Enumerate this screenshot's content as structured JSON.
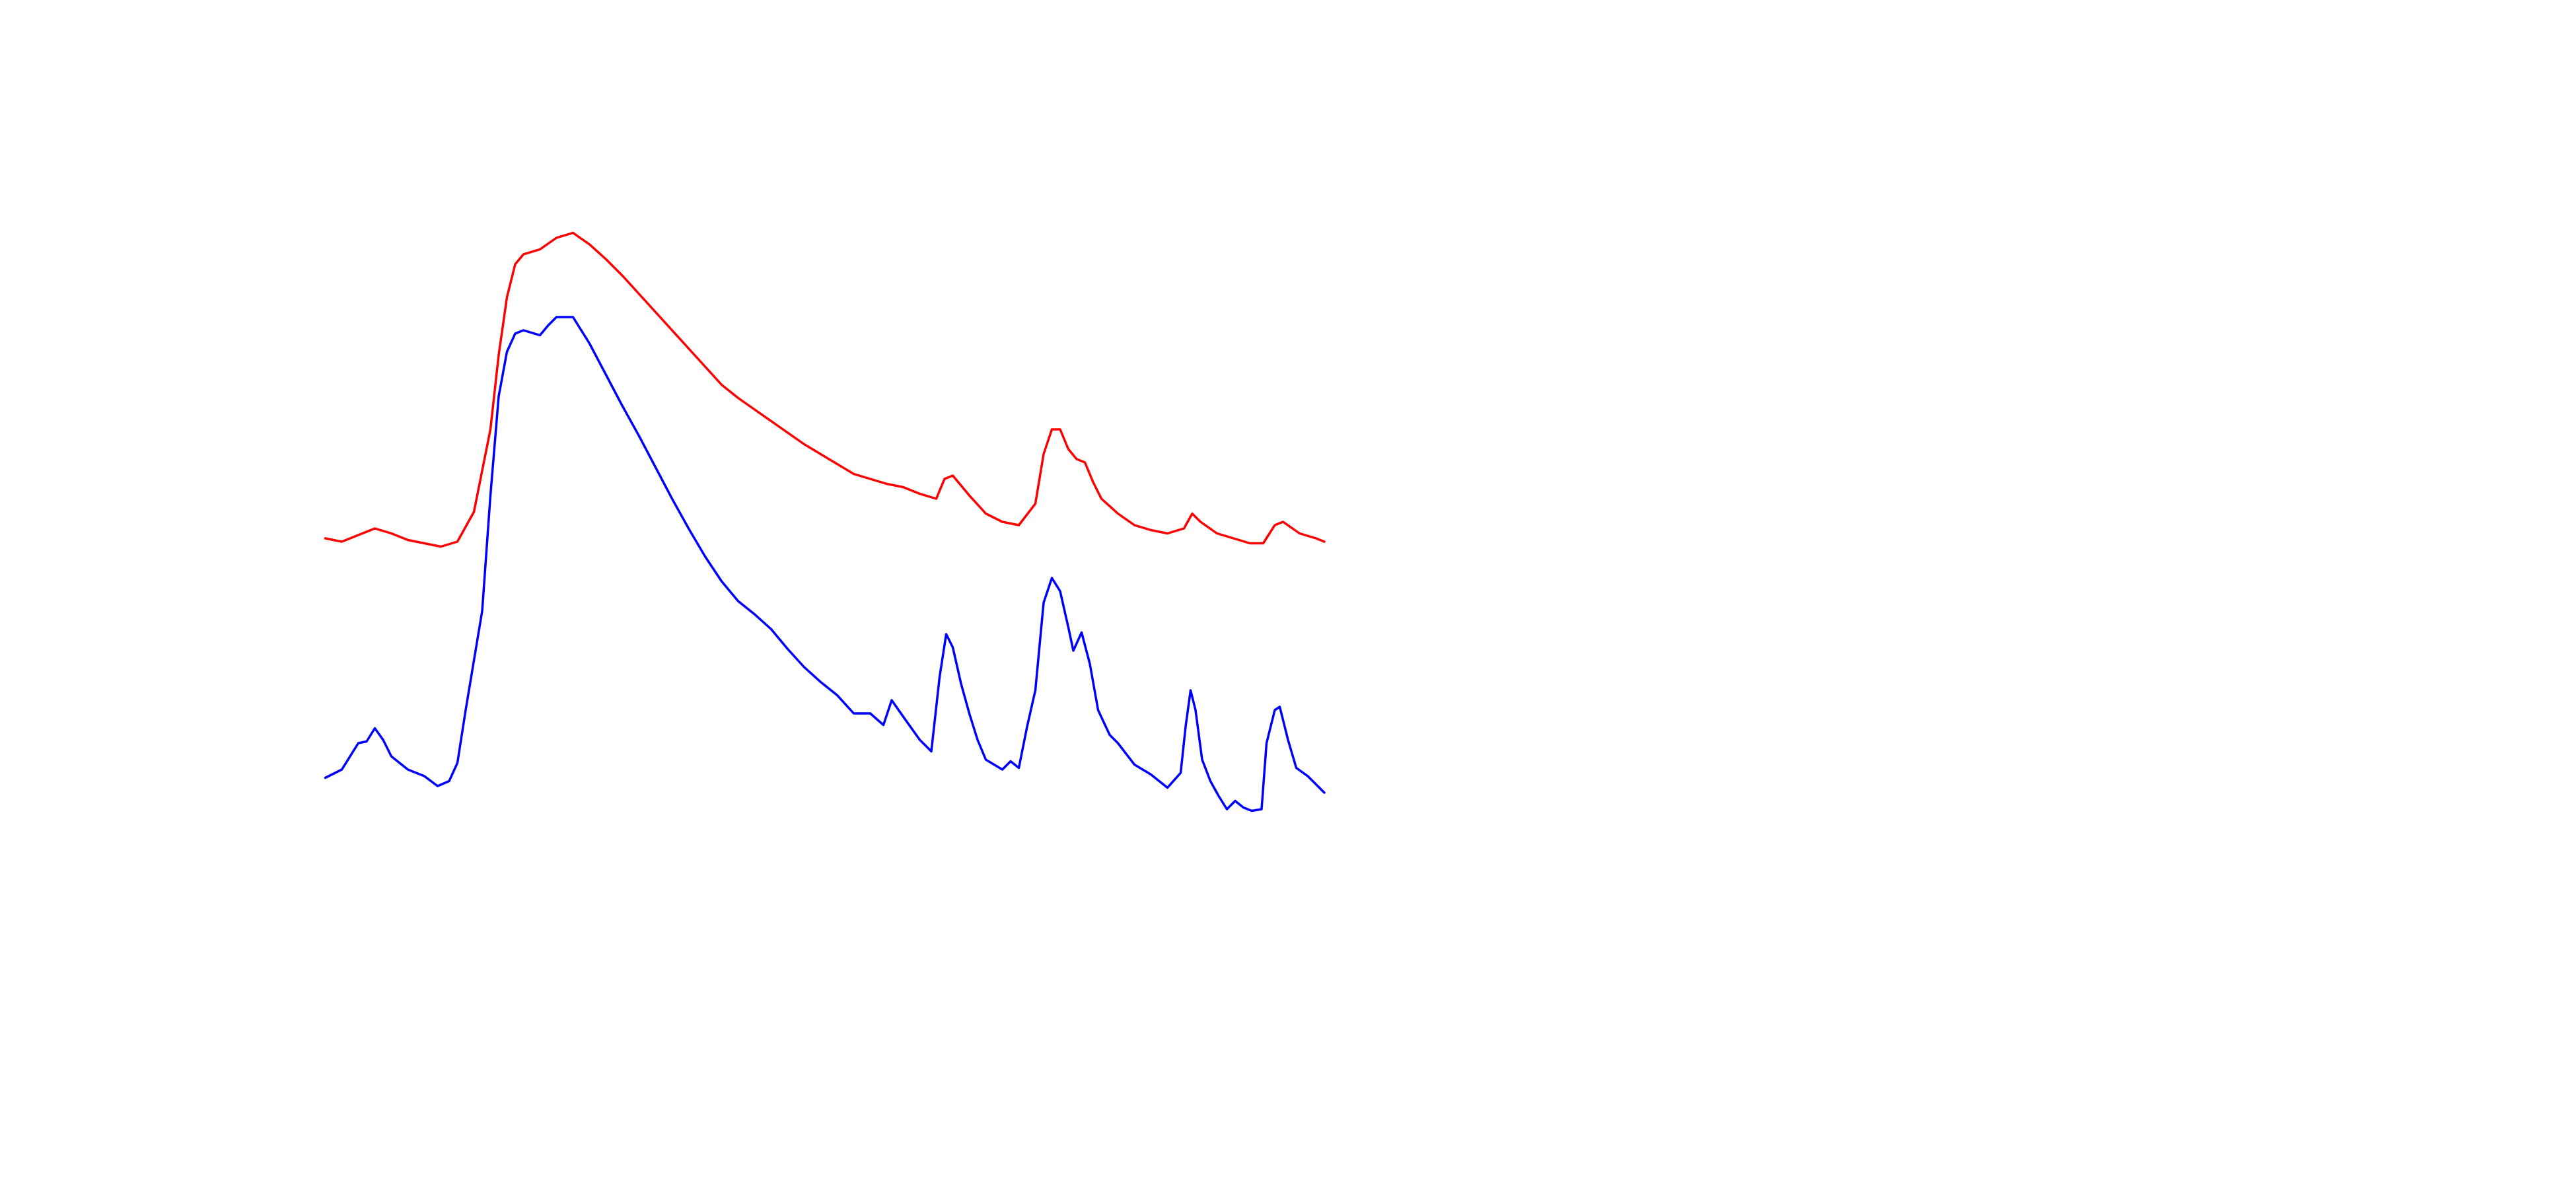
{
  "chart_data": {
    "type": "line",
    "series": [
      {
        "color": "#ff0000",
        "x": [
          0,
          10,
          20,
          30,
          40,
          50,
          60,
          70,
          80,
          90,
          100,
          105,
          110,
          115,
          120,
          130,
          140,
          150,
          160,
          170,
          180,
          190,
          200,
          210,
          220,
          230,
          240,
          250,
          260,
          270,
          280,
          290,
          300,
          310,
          320,
          330,
          340,
          350,
          360,
          370,
          375,
          380,
          390,
          400,
          410,
          420,
          430,
          435,
          440,
          445,
          450,
          455,
          460,
          465,
          470,
          480,
          490,
          500,
          510,
          520,
          525,
          530,
          540,
          550,
          560,
          568,
          575,
          580,
          590,
          600,
          605
        ],
        "values": [
          174,
          172,
          176,
          180,
          177,
          173,
          171,
          169,
          172,
          190,
          240,
          285,
          320,
          340,
          346,
          349,
          356,
          359,
          352,
          343,
          333,
          322,
          311,
          300,
          289,
          278,
          267,
          259,
          252,
          245,
          238,
          231,
          225,
          219,
          213,
          210,
          207,
          205,
          201,
          198,
          210,
          212,
          200,
          189,
          184,
          182,
          195,
          225,
          240,
          240,
          228,
          222,
          220,
          208,
          198,
          189,
          182,
          179,
          177,
          180,
          189,
          184,
          177,
          174,
          171,
          171,
          182,
          184,
          177,
          174,
          172
        ]
      },
      {
        "color": "#0000ff",
        "x": [
          0,
          10,
          20,
          25,
          30,
          35,
          40,
          50,
          60,
          68,
          75,
          80,
          85,
          90,
          95,
          100,
          105,
          110,
          115,
          120,
          130,
          135,
          140,
          150,
          160,
          170,
          180,
          190,
          200,
          210,
          220,
          230,
          240,
          250,
          260,
          270,
          280,
          290,
          300,
          310,
          320,
          330,
          338,
          343,
          350,
          360,
          367,
          372,
          376,
          380,
          385,
          390,
          395,
          400,
          410,
          415,
          420,
          425,
          430,
          435,
          440,
          445,
          450,
          453,
          458,
          463,
          468,
          475,
          480,
          490,
          500,
          510,
          518,
          521,
          524,
          527,
          531,
          536,
          541,
          546,
          551,
          556,
          561,
          567,
          570,
          575,
          578,
          583,
          588,
          595,
          605
        ],
        "values": [
          29,
          34,
          50,
          51,
          59,
          52,
          42,
          34,
          30,
          24,
          27,
          38,
          70,
          100,
          130,
          200,
          260,
          287,
          298,
          300,
          297,
          303,
          308,
          308,
          292,
          273,
          254,
          236,
          217,
          198,
          180,
          163,
          148,
          136,
          128,
          119,
          107,
          96,
          87,
          79,
          68,
          68,
          61,
          76,
          66,
          52,
          45,
          90,
          116,
          108,
          86,
          68,
          52,
          40,
          34,
          39,
          35,
          60,
          82,
          135,
          150,
          142,
          120,
          106,
          117,
          98,
          70,
          55,
          50,
          37,
          31,
          23,
          32,
          60,
          82,
          70,
          40,
          27,
          18,
          10,
          15,
          11,
          9,
          10,
          50,
          70,
          72,
          52,
          35,
          30,
          20
        ]
      }
    ]
  }
}
